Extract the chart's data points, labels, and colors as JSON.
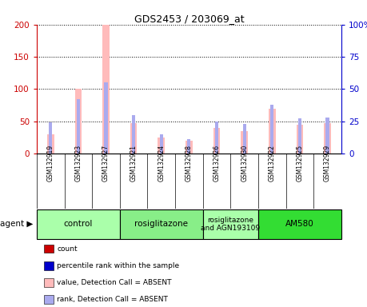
{
  "title": "GDS2453 / 203069_at",
  "samples": [
    "GSM132919",
    "GSM132923",
    "GSM132927",
    "GSM132921",
    "GSM132924",
    "GSM132928",
    "GSM132926",
    "GSM132930",
    "GSM132922",
    "GSM132925",
    "GSM132929"
  ],
  "absent_value": [
    30,
    100,
    200,
    47,
    25,
    20,
    40,
    35,
    70,
    45,
    47
  ],
  "absent_rank": [
    24,
    42,
    55,
    30,
    15,
    11,
    25,
    23,
    38,
    27,
    28
  ],
  "left_ylim": [
    0,
    200
  ],
  "right_ylim": [
    0,
    100
  ],
  "left_yticks": [
    0,
    50,
    100,
    150,
    200
  ],
  "right_yticks": [
    0,
    25,
    50,
    75,
    100
  ],
  "right_yticklabels": [
    "0",
    "25",
    "50",
    "75",
    "100%"
  ],
  "agent_groups": [
    {
      "label": "control",
      "start": 0,
      "end": 3,
      "color": "#aaffaa"
    },
    {
      "label": "rosiglitazone",
      "start": 3,
      "end": 6,
      "color": "#88ee88"
    },
    {
      "label": "rosiglitazone\nand AGN193109",
      "start": 6,
      "end": 8,
      "color": "#aaffaa"
    },
    {
      "label": "AM580",
      "start": 8,
      "end": 11,
      "color": "#33dd33"
    }
  ],
  "absent_bar_color": "#ffbbbb",
  "absent_rank_color": "#aaaaee",
  "axis_color_left": "#cc0000",
  "axis_color_right": "#0000cc",
  "legend_items": [
    {
      "color": "#cc0000",
      "label": "count"
    },
    {
      "color": "#0000cc",
      "label": "percentile rank within the sample"
    },
    {
      "color": "#ffbbbb",
      "label": "value, Detection Call = ABSENT"
    },
    {
      "color": "#aaaaee",
      "label": "rank, Detection Call = ABSENT"
    }
  ],
  "plot_bg": "white",
  "fig_bg": "white",
  "grid_color": "black",
  "sample_area_color": "#dddddd"
}
